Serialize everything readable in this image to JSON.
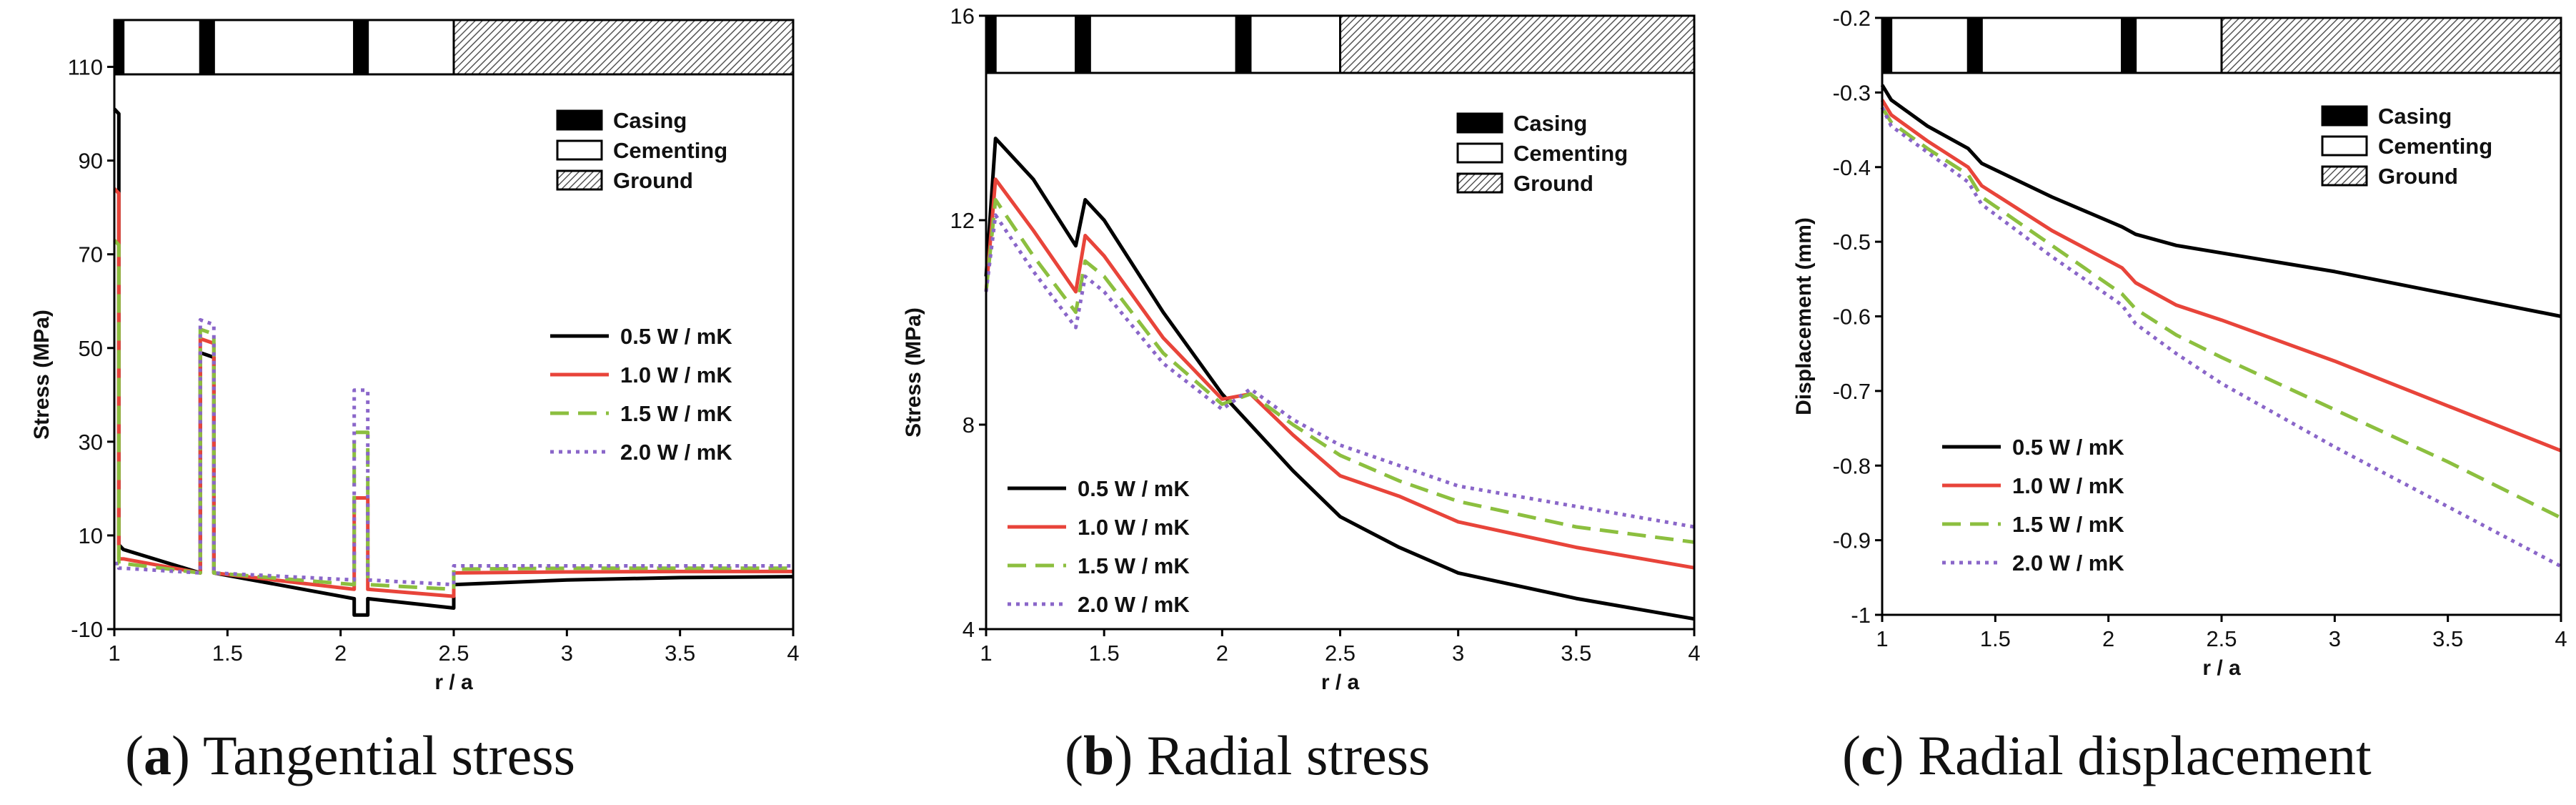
{
  "legend_lines": [
    "0.5 W / mK",
    "1.0 W / mK",
    "1.5 W / mK",
    "2.0 W / mK"
  ],
  "legend_layers": [
    "Casing",
    "Cementing",
    "Ground"
  ],
  "colors": {
    "k05": "#000000",
    "k10": "#e8443a",
    "k15": "#8cbf3f",
    "k20": "#8a66c9"
  },
  "captions": [
    {
      "paren_open": "(",
      "letter": "a",
      "text": ") Tangential stress"
    },
    {
      "paren_open": "(",
      "letter": "b",
      "text": ") Radial stress"
    },
    {
      "paren_open": "(",
      "letter": "c",
      "text": ") Radial displacement"
    }
  ],
  "chart_data": [
    {
      "type": "line",
      "title": "Tangential stress",
      "xlabel": "r / a",
      "ylabel": "Stress (MPa)",
      "xlim": [
        1,
        4
      ],
      "ylim": [
        -10,
        120
      ],
      "xticks": [
        "1",
        "1.5",
        "2",
        "2.5",
        "3",
        "3.5",
        "4"
      ],
      "yticks": [
        "-10",
        "10",
        "30",
        "50",
        "70",
        "90",
        "110"
      ],
      "xtick_values": [
        1,
        1.5,
        2,
        2.5,
        3,
        3.5,
        4
      ],
      "ytick_values": [
        -10,
        10,
        30,
        50,
        70,
        90,
        110
      ],
      "layers": [
        {
          "name": "Casing",
          "from": 1.0,
          "to": 1.04
        },
        {
          "name": "Cementing",
          "from": 1.04,
          "to": 1.38
        },
        {
          "name": "Casing",
          "from": 1.38,
          "to": 1.44
        },
        {
          "name": "Cementing",
          "from": 1.44,
          "to": 2.06
        },
        {
          "name": "Casing",
          "from": 2.06,
          "to": 2.12
        },
        {
          "name": "Cementing",
          "from": 2.12,
          "to": 2.5
        },
        {
          "name": "Ground",
          "from": 2.5,
          "to": 4.0
        }
      ],
      "series": [
        {
          "name": "0.5 W / mK",
          "style": "solid",
          "x": [
            1.0,
            1.02,
            1.02,
            1.04,
            1.04,
            1.38,
            1.38,
            1.44,
            1.44,
            2.06,
            2.06,
            2.12,
            2.12,
            2.5,
            2.5,
            3.0,
            3.5,
            4.0
          ],
          "y": [
            101,
            100,
            8,
            7,
            7,
            2,
            49,
            48,
            2,
            -3.5,
            -7,
            -7,
            -3.5,
            -5.5,
            -0.5,
            0.5,
            1.0,
            1.2
          ]
        },
        {
          "name": "1.0 W / mK",
          "style": "solid",
          "x": [
            1.0,
            1.02,
            1.02,
            1.04,
            1.38,
            1.38,
            1.44,
            1.44,
            2.06,
            2.06,
            2.12,
            2.12,
            2.5,
            2.5,
            3.0,
            3.5,
            4.0
          ],
          "y": [
            84,
            83,
            5,
            5,
            2,
            52,
            51,
            2,
            -1.5,
            18,
            18,
            -1.5,
            -3,
            2,
            2.2,
            2.3,
            2.3
          ]
        },
        {
          "name": "1.5 W / mK",
          "style": "dashed",
          "x": [
            1.0,
            1.02,
            1.02,
            1.04,
            1.38,
            1.38,
            1.44,
            1.44,
            2.06,
            2.06,
            2.12,
            2.12,
            2.5,
            2.5,
            3.0,
            3.5,
            4.0
          ],
          "y": [
            73,
            72,
            4,
            4,
            2,
            54,
            53,
            2,
            -0.5,
            32,
            32,
            -0.5,
            -1.5,
            2.8,
            3.0,
            3.0,
            3.0
          ]
        },
        {
          "name": "2.0 W / mK",
          "style": "dotted",
          "x": [
            1.0,
            1.02,
            1.02,
            1.04,
            1.38,
            1.38,
            1.44,
            1.44,
            2.06,
            2.06,
            2.12,
            2.12,
            2.5,
            2.5,
            3.0,
            3.5,
            4.0
          ],
          "y": [
            4,
            4,
            3,
            3,
            2,
            56,
            55,
            2,
            0.5,
            41,
            41,
            0.5,
            -0.5,
            3.5,
            3.5,
            3.5,
            3.5
          ]
        }
      ]
    },
    {
      "type": "line",
      "title": "Radial stress",
      "xlabel": "r / a",
      "ylabel": "Stress (MPa)",
      "xlim": [
        1,
        4
      ],
      "ylim": [
        4,
        16
      ],
      "xticks": [
        "1",
        "1.5",
        "2",
        "2.5",
        "3",
        "3.5",
        "4"
      ],
      "yticks": [
        "4",
        "8",
        "12",
        "16"
      ],
      "xtick_values": [
        1,
        1.5,
        2,
        2.5,
        3,
        3.5,
        4
      ],
      "ytick_values": [
        4,
        8,
        12,
        16
      ],
      "layers": [
        {
          "name": "Casing",
          "from": 1.0,
          "to": 1.04
        },
        {
          "name": "Cementing",
          "from": 1.04,
          "to": 1.38
        },
        {
          "name": "Casing",
          "from": 1.38,
          "to": 1.44
        },
        {
          "name": "Cementing",
          "from": 1.44,
          "to": 2.06
        },
        {
          "name": "Casing",
          "from": 2.06,
          "to": 2.12
        },
        {
          "name": "Cementing",
          "from": 2.12,
          "to": 2.5
        },
        {
          "name": "Ground",
          "from": 2.5,
          "to": 4.0
        }
      ],
      "series": [
        {
          "name": "0.5 W / mK",
          "style": "solid",
          "x": [
            1.0,
            1.04,
            1.2,
            1.38,
            1.42,
            1.5,
            1.75,
            2.0,
            2.12,
            2.3,
            2.5,
            2.75,
            3.0,
            3.5,
            4.0
          ],
          "y": [
            10.9,
            13.6,
            12.8,
            11.5,
            12.4,
            12.0,
            10.2,
            8.6,
            8.0,
            7.1,
            6.2,
            5.6,
            5.1,
            4.6,
            4.2
          ]
        },
        {
          "name": "1.0 W / mK",
          "style": "solid",
          "x": [
            1.0,
            1.04,
            1.2,
            1.38,
            1.42,
            1.5,
            1.75,
            2.0,
            2.12,
            2.3,
            2.5,
            2.75,
            3.0,
            3.5,
            4.0
          ],
          "y": [
            10.6,
            12.8,
            11.8,
            10.6,
            11.7,
            11.3,
            9.7,
            8.5,
            8.6,
            7.8,
            7.0,
            6.6,
            6.1,
            5.6,
            5.2
          ]
        },
        {
          "name": "1.5 W / mK",
          "style": "dashed",
          "x": [
            1.0,
            1.04,
            1.2,
            1.38,
            1.42,
            1.5,
            1.75,
            2.0,
            2.12,
            2.3,
            2.5,
            2.75,
            3.0,
            3.5,
            4.0
          ],
          "y": [
            10.6,
            12.4,
            11.3,
            10.2,
            11.2,
            10.9,
            9.4,
            8.4,
            8.6,
            8.0,
            7.4,
            6.9,
            6.5,
            6.0,
            5.7
          ]
        },
        {
          "name": "2.0 W / mK",
          "style": "dotted",
          "x": [
            1.0,
            1.04,
            1.2,
            1.38,
            1.42,
            1.5,
            1.75,
            2.0,
            2.12,
            2.3,
            2.5,
            2.75,
            3.0,
            3.5,
            4.0
          ],
          "y": [
            10.6,
            12.1,
            11.0,
            9.9,
            10.9,
            10.6,
            9.2,
            8.3,
            8.7,
            8.1,
            7.6,
            7.2,
            6.8,
            6.4,
            6.0
          ]
        }
      ]
    },
    {
      "type": "line",
      "title": "Radial displacement",
      "xlabel": "r / a",
      "ylabel": "Displacement (mm)",
      "xlim": [
        1,
        4
      ],
      "ylim": [
        -1,
        -0.2
      ],
      "xticks": [
        "1",
        "1.5",
        "2",
        "2.5",
        "3",
        "3.5",
        "4"
      ],
      "yticks": [
        "-1",
        "-0.9",
        "-0.8",
        "-0.7",
        "-0.6",
        "-0.5",
        "-0.4",
        "-0.3",
        "-0.2"
      ],
      "xtick_values": [
        1,
        1.5,
        2,
        2.5,
        3,
        3.5,
        4
      ],
      "ytick_values": [
        -1,
        -0.9,
        -0.8,
        -0.7,
        -0.6,
        -0.5,
        -0.4,
        -0.3,
        -0.2
      ],
      "layers": [
        {
          "name": "Casing",
          "from": 1.0,
          "to": 1.04
        },
        {
          "name": "Cementing",
          "from": 1.04,
          "to": 1.38
        },
        {
          "name": "Casing",
          "from": 1.38,
          "to": 1.44
        },
        {
          "name": "Cementing",
          "from": 1.44,
          "to": 2.06
        },
        {
          "name": "Casing",
          "from": 2.06,
          "to": 2.12
        },
        {
          "name": "Cementing",
          "from": 2.12,
          "to": 2.5
        },
        {
          "name": "Ground",
          "from": 2.5,
          "to": 4.0
        }
      ],
      "series": [
        {
          "name": "0.5 W / mK",
          "style": "solid",
          "x": [
            1.0,
            1.04,
            1.2,
            1.38,
            1.44,
            1.75,
            2.06,
            2.12,
            2.3,
            2.5,
            3.0,
            3.5,
            4.0
          ],
          "y": [
            -0.29,
            -0.31,
            -0.345,
            -0.375,
            -0.395,
            -0.44,
            -0.48,
            -0.49,
            -0.505,
            -0.515,
            -0.54,
            -0.57,
            -0.6
          ]
        },
        {
          "name": "1.0 W / mK",
          "style": "solid",
          "x": [
            1.0,
            1.04,
            1.2,
            1.38,
            1.44,
            1.75,
            2.06,
            2.12,
            2.3,
            2.5,
            3.0,
            3.5,
            4.0
          ],
          "y": [
            -0.31,
            -0.33,
            -0.365,
            -0.4,
            -0.425,
            -0.485,
            -0.535,
            -0.555,
            -0.585,
            -0.605,
            -0.66,
            -0.72,
            -0.78
          ]
        },
        {
          "name": "1.5 W / mK",
          "style": "dashed",
          "x": [
            1.0,
            1.04,
            1.2,
            1.38,
            1.44,
            1.75,
            2.06,
            2.12,
            2.3,
            2.5,
            3.0,
            3.5,
            4.0
          ],
          "y": [
            -0.32,
            -0.34,
            -0.375,
            -0.41,
            -0.44,
            -0.505,
            -0.57,
            -0.59,
            -0.625,
            -0.655,
            -0.725,
            -0.795,
            -0.87
          ]
        },
        {
          "name": "2.0 W / mK",
          "style": "dotted",
          "x": [
            1.0,
            1.04,
            1.2,
            1.38,
            1.44,
            1.75,
            2.06,
            2.12,
            2.3,
            2.5,
            3.0,
            3.5,
            4.0
          ],
          "y": [
            -0.32,
            -0.345,
            -0.38,
            -0.42,
            -0.45,
            -0.52,
            -0.585,
            -0.61,
            -0.65,
            -0.69,
            -0.775,
            -0.855,
            -0.935
          ]
        }
      ]
    }
  ]
}
